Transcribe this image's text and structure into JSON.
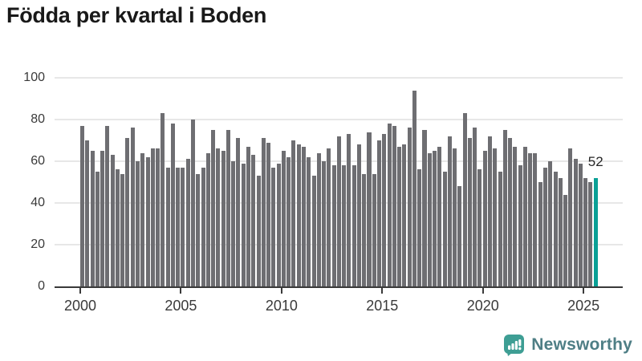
{
  "title": "Födda per kvartal i Boden",
  "chart_data": {
    "type": "bar",
    "title": "Födda per kvartal i Boden",
    "x_start": "2000-Q1",
    "x_end": "2025-Q3",
    "x_tick_labels": [
      "2000",
      "2005",
      "2010",
      "2015",
      "2020",
      "2025"
    ],
    "x_tick_quarter_indices": [
      0,
      20,
      40,
      60,
      80,
      100
    ],
    "y_ticks": [
      0,
      20,
      40,
      60,
      80,
      100
    ],
    "ylim": [
      0,
      100
    ],
    "grid": true,
    "values": [
      77,
      70,
      65,
      55,
      65,
      77,
      63,
      56,
      54,
      71,
      76,
      60,
      64,
      62,
      66,
      66,
      83,
      57,
      78,
      57,
      57,
      61,
      80,
      54,
      57,
      64,
      75,
      66,
      65,
      75,
      60,
      71,
      59,
      67,
      63,
      53,
      71,
      69,
      57,
      59,
      65,
      62,
      70,
      68,
      67,
      62,
      53,
      64,
      60,
      66,
      58,
      72,
      58,
      73,
      58,
      68,
      54,
      74,
      54,
      70,
      73,
      78,
      77,
      67,
      68,
      76,
      94,
      56,
      75,
      64,
      65,
      67,
      55,
      72,
      66,
      48,
      83,
      71,
      76,
      56,
      65,
      72,
      66,
      55,
      75,
      71,
      67,
      58,
      67,
      64,
      64,
      50,
      57,
      60,
      55,
      52,
      44,
      66,
      61,
      59,
      52,
      50,
      52
    ],
    "highlight_index": 102,
    "last_value_label": "52",
    "bar_color": "#6e6e72",
    "highlight_color": "#0aa096",
    "axis_color": "#3a3a3a",
    "grid_color": "#e7e7e7"
  },
  "footer": {
    "brand": "Newsworthy",
    "logo_icon": "bar-chart-speech-bubble-icon",
    "logo_bg_color": "#3e9e94",
    "brand_text_color": "#4e7e85"
  }
}
